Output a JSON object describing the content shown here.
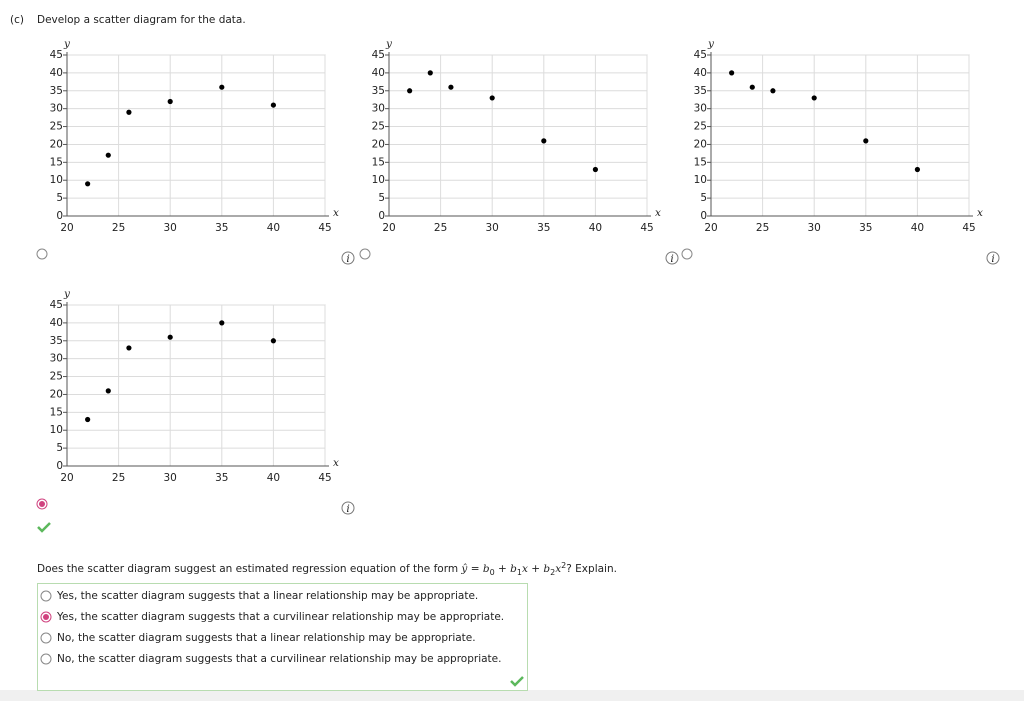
{
  "header": {
    "label": "(c)",
    "title": "Develop a scatter diagram for the data."
  },
  "chart_data": [
    {
      "type": "scatter",
      "xlabel": "x",
      "ylabel": "y",
      "x": [
        22,
        24,
        26,
        30,
        35,
        40
      ],
      "y": [
        9,
        17,
        29,
        32,
        36,
        31
      ],
      "color": "#000000",
      "xlim": [
        20,
        45
      ],
      "ylim": [
        0,
        45
      ],
      "xticks": [
        20,
        25,
        30,
        35,
        40,
        45
      ],
      "yticks": [
        0,
        5,
        10,
        15,
        20,
        25,
        30,
        35,
        40,
        45
      ],
      "grid": true,
      "selected": false
    },
    {
      "type": "scatter",
      "xlabel": "x",
      "ylabel": "y",
      "x": [
        22,
        24,
        26,
        30,
        35,
        40
      ],
      "y": [
        35,
        40,
        36,
        33,
        21,
        13
      ],
      "color": "#000000",
      "xlim": [
        20,
        45
      ],
      "ylim": [
        0,
        45
      ],
      "xticks": [
        20,
        25,
        30,
        35,
        40,
        45
      ],
      "yticks": [
        0,
        5,
        10,
        15,
        20,
        25,
        30,
        35,
        40,
        45
      ],
      "grid": true,
      "selected": false
    },
    {
      "type": "scatter",
      "xlabel": "x",
      "ylabel": "y",
      "x": [
        22,
        24,
        26,
        30,
        35,
        40
      ],
      "y": [
        40,
        36,
        35,
        33,
        21,
        13
      ],
      "color": "#000000",
      "xlim": [
        20,
        45
      ],
      "ylim": [
        0,
        45
      ],
      "xticks": [
        20,
        25,
        30,
        35,
        40,
        45
      ],
      "yticks": [
        0,
        5,
        10,
        15,
        20,
        25,
        30,
        35,
        40,
        45
      ],
      "grid": true,
      "selected": false
    },
    {
      "type": "scatter",
      "xlabel": "x",
      "ylabel": "y",
      "x": [
        22,
        24,
        26,
        30,
        35,
        40
      ],
      "y": [
        13,
        21,
        33,
        36,
        40,
        35
      ],
      "color": "#000000",
      "xlim": [
        20,
        45
      ],
      "ylim": [
        0,
        45
      ],
      "xticks": [
        20,
        25,
        30,
        35,
        40,
        45
      ],
      "yticks": [
        0,
        5,
        10,
        15,
        20,
        25,
        30,
        35,
        40,
        45
      ],
      "grid": true,
      "selected": true
    }
  ],
  "question": {
    "text": "Does the scatter diagram suggest an estimated regression equation of the form",
    "equation": [
      "ŷ",
      "=",
      "b",
      "0",
      "+",
      "b",
      "1",
      "x",
      "+",
      "b",
      "2",
      "x",
      "2"
    ],
    "suffix": "? Explain."
  },
  "options": [
    {
      "text": "Yes, the scatter diagram suggests that a linear relationship may be appropriate.",
      "selected": false
    },
    {
      "text": "Yes, the scatter diagram suggests that a curvilinear relationship may be appropriate.",
      "selected": true
    },
    {
      "text": "No, the scatter diagram suggests that a linear relationship may be appropriate.",
      "selected": false
    },
    {
      "text": "No, the scatter diagram suggests that a curvilinear relationship may be appropriate.",
      "selected": false
    }
  ]
}
